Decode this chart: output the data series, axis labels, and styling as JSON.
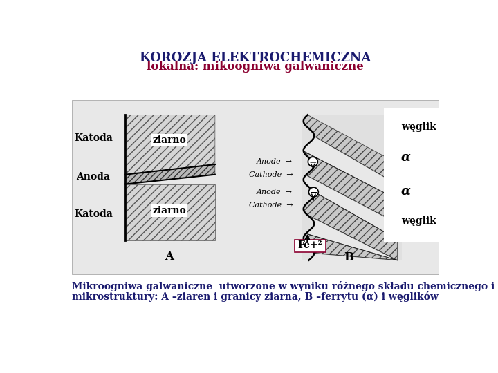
{
  "title_line1": "KOROZJA ELEKTROCHEMICZNA",
  "title_line2": "lokalna: mikoogniwa galwaniczne",
  "title_color": "#1a1a6e",
  "subtitle_color": "#8b0030",
  "bg_color": "#ffffff",
  "caption_line1": "Mikroogniwa galwaniczne  utworzone w wyniku różnego składu chemicznego i",
  "caption_line2": "mikrostruktury: A –ziaren i granicy ziarna, B –ferrytu (α) i węglików",
  "label_katoda1": "Katoda",
  "label_anoda": "Anoda",
  "label_katoda2": "Katoda",
  "label_ziarno1": "ziarno",
  "label_ziarno2": "ziarno",
  "label_A": "A",
  "label_B": "B",
  "label_weglik_top": "węglik",
  "label_alpha1": "α",
  "label_alpha2": "α",
  "label_weglik_bot": "węglik",
  "label_fe2": "Fe+²",
  "anode_cathode_labels": [
    "Anode",
    "Cathode",
    "Anode",
    "Cathode"
  ]
}
